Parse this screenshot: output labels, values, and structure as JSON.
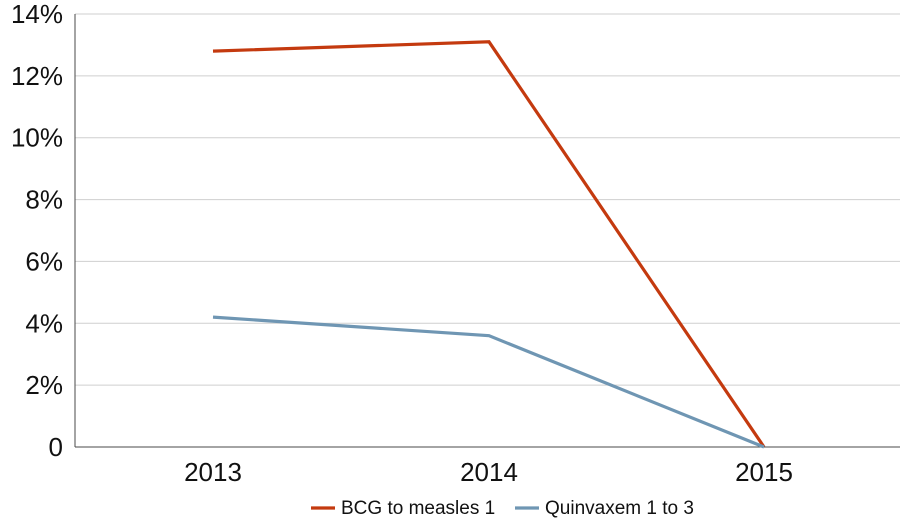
{
  "chart_data": {
    "type": "line",
    "title": "",
    "xlabel": "",
    "ylabel": "",
    "categories": [
      "2013",
      "2014",
      "2015"
    ],
    "y_ticks": [
      {
        "value": 0,
        "label": "0"
      },
      {
        "value": 2,
        "label": "2%"
      },
      {
        "value": 4,
        "label": "4%"
      },
      {
        "value": 6,
        "label": "6%"
      },
      {
        "value": 8,
        "label": "8%"
      },
      {
        "value": 10,
        "label": "10%"
      },
      {
        "value": 12,
        "label": "12%"
      },
      {
        "value": 14,
        "label": "14%"
      }
    ],
    "ylim": [
      0,
      14
    ],
    "y_unit": "%",
    "grid": true,
    "legend_position": "bottom",
    "series": [
      {
        "name": "BCG to measles 1",
        "color": "#c43a0f",
        "values": [
          12.8,
          13.1,
          0
        ]
      },
      {
        "name": "Quinvaxem 1 to 3",
        "color": "#6f96b3",
        "values": [
          4.2,
          3.6,
          0
        ]
      }
    ]
  }
}
